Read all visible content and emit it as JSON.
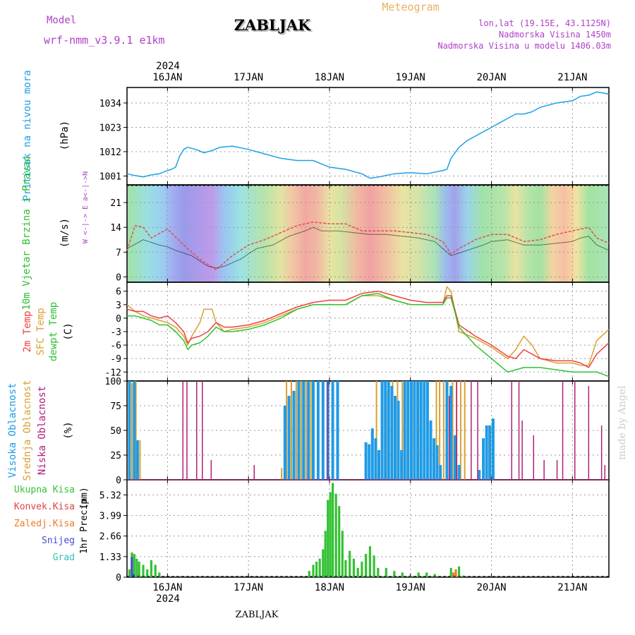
{
  "header": {
    "model_label": "Model",
    "model_name": "wrf-nmm_v3.9.1 e1km",
    "title": "ZABLJAK",
    "meteogram_label": "Meteogram",
    "coords": "lon,lat (19.15E, 43.1125N)",
    "elevation": "Nadmorska Visina 1450m",
    "model_elevation": "Nadmorska Visina u modelu 1406.03m",
    "footer": "ZABLJAK",
    "watermark": "made by Angel"
  },
  "colors": {
    "pressure": "#1ea0e6",
    "temp2m": "#f04040",
    "sfc": "#d9a030",
    "dewpt": "#30c030",
    "high_cloud": "#1e9be6",
    "mid_cloud": "#d9a030",
    "low_cloud": "#b0207a",
    "total_precip": "#34c234",
    "convective": "#e04040",
    "freezing": "#f07828",
    "snow": "#4848d8",
    "hail": "#30c0b0",
    "label_purple": "#b040c8",
    "label_gold": "#e8b060"
  },
  "chart_data": [
    {
      "type": "line",
      "panel": "pressure",
      "ylabel": "Pritisak na nivou mora",
      "unit": "(hPa)",
      "yticks": [
        1001,
        1012,
        1023,
        1034
      ],
      "ylim": [
        997,
        1041
      ],
      "xlim": [
        15.5,
        21.45
      ],
      "top_year": "2024",
      "day_labels": [
        "16JAN",
        "17JAN",
        "18JAN",
        "19JAN",
        "20JAN",
        "21JAN"
      ],
      "day_positions": [
        16,
        17,
        18,
        19,
        20,
        21
      ],
      "series": [
        {
          "x": [
            15.5,
            15.6,
            15.7,
            15.8,
            15.9,
            16.0,
            16.05,
            16.1,
            16.15,
            16.2,
            16.25,
            16.35,
            16.45,
            16.55,
            16.65,
            16.8,
            17.0,
            17.2,
            17.4,
            17.6,
            17.8,
            18.0,
            18.2,
            18.4,
            18.5,
            18.6,
            18.8,
            19.0,
            19.2,
            19.4,
            19.45,
            19.5,
            19.6,
            19.7,
            19.8,
            19.9,
            20.0,
            20.1,
            20.2,
            20.3,
            20.4,
            20.5,
            20.6,
            20.8,
            21.0,
            21.1,
            21.2,
            21.3,
            21.45
          ],
          "values": [
            1002,
            1001.2,
            1000.6,
            1001.5,
            1002,
            1003.5,
            1004,
            1005,
            1010,
            1013,
            1014,
            1013,
            1011.5,
            1012.5,
            1014,
            1014.5,
            1013,
            1011,
            1009,
            1008,
            1008,
            1005,
            1004,
            1002,
            1000,
            1000.5,
            1002,
            1002.5,
            1002,
            1003.5,
            1004,
            1009,
            1014,
            1017,
            1019,
            1021,
            1023,
            1025,
            1027,
            1029,
            1029,
            1030,
            1032,
            1034,
            1035,
            1037,
            1037.5,
            1039,
            1038
          ]
        }
      ]
    },
    {
      "type": "line",
      "panel": "wind",
      "ylabel": "10m Vjetar Brzina i Pravac",
      "unit": "(m/s)",
      "yticks": [
        0,
        7,
        14,
        21
      ],
      "ylim": [
        -1.5,
        26
      ],
      "direction_legend": "W <-|-> E  a<-|->N",
      "series": [
        {
          "name": "10m wind speed",
          "x": [
            15.5,
            15.7,
            15.9,
            16.0,
            16.1,
            16.3,
            16.5,
            16.6,
            16.7,
            16.9,
            17.1,
            17.3,
            17.5,
            17.7,
            17.8,
            17.9,
            18.1,
            18.3,
            18.5,
            18.7,
            18.9,
            19.1,
            19.3,
            19.5,
            19.7,
            19.9,
            20.0,
            20.2,
            20.4,
            20.6,
            20.8,
            21.0,
            21.1,
            21.2,
            21.3,
            21.45
          ],
          "values": [
            8,
            10.5,
            9,
            8.5,
            7.5,
            6,
            3,
            2.5,
            3,
            5,
            8,
            9,
            11.5,
            13,
            14,
            13,
            13,
            12.5,
            12,
            12,
            11.5,
            11,
            10,
            6,
            7.5,
            9,
            10,
            10.5,
            9,
            9,
            9.5,
            10,
            11,
            11.5,
            9,
            7.5
          ]
        },
        {
          "name": "10m wind gust",
          "x": [
            15.5,
            15.6,
            15.7,
            15.8,
            16.0,
            16.2,
            16.4,
            16.6,
            16.8,
            17.0,
            17.2,
            17.4,
            17.6,
            17.8,
            18.0,
            18.2,
            18.4,
            18.6,
            18.8,
            19.0,
            19.2,
            19.4,
            19.5,
            19.6,
            19.8,
            20.0,
            20.2,
            20.4,
            20.6,
            20.8,
            21.0,
            21.2,
            21.3,
            21.45
          ],
          "values": [
            7.5,
            14.5,
            14,
            11,
            13.5,
            9,
            5,
            2,
            6,
            9,
            10.5,
            12.5,
            14.5,
            15.5,
            15,
            15,
            13,
            13,
            13,
            12.5,
            12,
            10,
            6.5,
            8,
            10.5,
            12,
            12,
            10,
            10.5,
            12,
            13,
            14,
            11,
            9.5
          ]
        }
      ]
    },
    {
      "type": "line",
      "panel": "temperature",
      "ylabel": [
        "2m Temp",
        "SFC Temp",
        "dewpt Temp"
      ],
      "unit": "(C)",
      "yticks": [
        6,
        3,
        0,
        -3,
        -6,
        -9,
        -12
      ],
      "ylim": [
        -14,
        8
      ],
      "series": [
        {
          "name": "2m Temp",
          "x": [
            15.5,
            15.6,
            15.7,
            15.8,
            15.9,
            16.0,
            16.1,
            16.2,
            16.25,
            16.3,
            16.4,
            16.5,
            16.6,
            16.7,
            16.8,
            17.0,
            17.2,
            17.4,
            17.6,
            17.8,
            18.0,
            18.2,
            18.4,
            18.6,
            18.8,
            19.0,
            19.2,
            19.4,
            19.45,
            19.5,
            19.6,
            19.8,
            20.0,
            20.2,
            20.3,
            20.4,
            20.5,
            20.6,
            20.8,
            21.0,
            21.1,
            21.2,
            21.3,
            21.45
          ],
          "values": [
            2,
            1.5,
            1.5,
            0.5,
            0,
            0.5,
            -1,
            -3,
            -5.5,
            -4.5,
            -4,
            -3,
            -1,
            -2,
            -2,
            -1.5,
            -0.5,
            1,
            2.5,
            3.5,
            4,
            4,
            5.5,
            6,
            5,
            4,
            3.5,
            3.5,
            5,
            5,
            -1.5,
            -4,
            -6,
            -8.5,
            -9,
            -7,
            -8,
            -9,
            -9.5,
            -9.5,
            -10,
            -11,
            -8,
            -5.5
          ]
        },
        {
          "name": "SFC Temp",
          "x": [
            15.5,
            15.6,
            15.7,
            15.8,
            15.9,
            16.0,
            16.1,
            16.2,
            16.25,
            16.3,
            16.4,
            16.45,
            16.55,
            16.6,
            16.7,
            16.8,
            17.0,
            17.2,
            17.4,
            17.6,
            17.8,
            18.0,
            18.2,
            18.4,
            18.6,
            18.8,
            19.0,
            19.2,
            19.4,
            19.45,
            19.5,
            19.6,
            19.8,
            20.0,
            20.2,
            20.3,
            20.4,
            20.5,
            20.6,
            20.8,
            21.0,
            21.1,
            21.2,
            21.3,
            21.45
          ],
          "values": [
            3,
            1.5,
            0.5,
            0,
            -0.5,
            -1,
            -2,
            -4,
            -6,
            -4,
            -1,
            2,
            2,
            -1,
            -3,
            -2.5,
            -2,
            -1,
            0.5,
            2,
            3,
            3,
            3,
            5,
            5,
            4,
            3,
            3,
            3,
            7,
            6,
            -3,
            -4.5,
            -6.5,
            -9,
            -7,
            -4,
            -6,
            -9,
            -10,
            -10,
            -10.5,
            -10.5,
            -5,
            -2.5
          ]
        },
        {
          "name": "dewpt Temp",
          "x": [
            15.5,
            15.6,
            15.7,
            15.8,
            15.9,
            16.0,
            16.1,
            16.2,
            16.25,
            16.3,
            16.4,
            16.5,
            16.6,
            16.7,
            16.8,
            17.0,
            17.2,
            17.4,
            17.6,
            17.8,
            18.0,
            18.2,
            18.4,
            18.6,
            18.8,
            19.0,
            19.2,
            19.4,
            19.45,
            19.5,
            19.6,
            19.8,
            20.0,
            20.2,
            20.3,
            20.4,
            20.6,
            20.8,
            21.0,
            21.2,
            21.3,
            21.45
          ],
          "values": [
            0.5,
            0.5,
            0,
            -0.5,
            -1.5,
            -1.5,
            -3,
            -5,
            -7,
            -6,
            -5.5,
            -4,
            -2,
            -3,
            -3,
            -2.5,
            -1.5,
            0,
            2,
            3,
            3,
            3,
            5,
            5.5,
            4,
            3,
            3,
            3,
            4.5,
            4.5,
            -2,
            -6,
            -9,
            -12,
            -11.5,
            -11,
            -11,
            -11.5,
            -12,
            -12,
            -12,
            -13
          ]
        }
      ]
    },
    {
      "type": "bar",
      "panel": "clouds",
      "ylabel": [
        "Visoka Oblacnost",
        "Srednja Oblacnost",
        "Niska Oblacnost"
      ],
      "unit": "(%)",
      "yticks": [
        0,
        25,
        50,
        75,
        100
      ],
      "ylim": [
        0,
        100
      ],
      "series": [
        {
          "name": "Visoka Oblacnost",
          "x": [
            15.53,
            15.59,
            15.63,
            17.45,
            17.5,
            17.56,
            17.62,
            17.68,
            17.74,
            17.8,
            17.86,
            17.92,
            17.98,
            18.04,
            18.1,
            18.45,
            18.49,
            18.53,
            18.57,
            18.61,
            18.65,
            18.69,
            18.73,
            18.77,
            18.81,
            18.85,
            18.89,
            18.93,
            18.97,
            19.01,
            19.05,
            19.09,
            19.13,
            19.17,
            19.21,
            19.25,
            19.29,
            19.33,
            19.37,
            19.45,
            19.5,
            19.55,
            19.6,
            19.85,
            19.9,
            19.94,
            19.98,
            20.02
          ],
          "values": [
            100,
            100,
            40,
            75,
            85,
            90,
            100,
            100,
            100,
            100,
            100,
            100,
            100,
            100,
            100,
            38,
            36,
            52,
            42,
            30,
            100,
            100,
            100,
            95,
            85,
            80,
            30,
            100,
            100,
            100,
            100,
            100,
            100,
            100,
            100,
            60,
            42,
            35,
            15,
            100,
            95,
            45,
            15,
            10,
            42,
            55,
            55,
            62
          ]
        },
        {
          "name": "Srednja Oblacnost",
          "x": [
            15.56,
            15.61,
            15.66,
            17.41,
            17.47,
            17.53,
            17.59,
            17.65,
            17.71,
            17.77,
            18.58,
            18.72,
            18.78,
            18.84,
            18.9,
            18.96,
            19.02,
            19.12,
            19.32,
            19.36,
            19.41,
            19.46,
            19.52,
            19.57,
            19.62,
            19.67,
            19.97
          ],
          "values": [
            98,
            100,
            40,
            12,
            100,
            100,
            100,
            100,
            100,
            100,
            100,
            90,
            100,
            100,
            100,
            100,
            100,
            100,
            100,
            100,
            100,
            100,
            100,
            100,
            100,
            100,
            55
          ]
        },
        {
          "name": "Niska Oblacnost",
          "x": [
            16.19,
            16.24,
            16.36,
            16.43,
            16.54,
            17.07,
            17.98,
            19.48,
            19.57,
            19.75,
            19.83,
            20.25,
            20.34,
            20.38,
            20.52,
            20.65,
            20.81,
            20.88,
            21.03,
            21.2,
            21.36,
            21.4
          ],
          "values": [
            100,
            100,
            100,
            100,
            20,
            15,
            100,
            85,
            100,
            100,
            100,
            100,
            100,
            60,
            45,
            20,
            20,
            100,
            100,
            95,
            55,
            15
          ]
        }
      ]
    },
    {
      "type": "bar",
      "panel": "precipitation",
      "ylabel": "1hr Precip",
      "unit": "(mm)",
      "yticks": [
        0,
        1.33,
        2.66,
        3.99,
        5.32
      ],
      "ylim": [
        0,
        6.3
      ],
      "legend": [
        "Ukupna Kisa",
        "Konvek.Kisa",
        "Zaledj.Kisa",
        "Snijeg",
        "Grad"
      ],
      "bottom_year": "2024",
      "series": [
        {
          "name": "Ukupna Kisa",
          "x": [
            15.53,
            15.56,
            15.59,
            15.62,
            15.65,
            15.7,
            15.75,
            15.8,
            15.85,
            15.9,
            17.75,
            17.8,
            17.84,
            17.88,
            17.92,
            17.95,
            17.98,
            18.01,
            18.04,
            18.08,
            18.12,
            18.16,
            18.2,
            18.25,
            18.3,
            18.35,
            18.4,
            18.45,
            18.5,
            18.55,
            18.6,
            18.7,
            18.8,
            18.9,
            19.0,
            19.1,
            19.2,
            19.3,
            19.5,
            19.6,
            19.65
          ],
          "values": [
            0.5,
            1.6,
            1.5,
            1.2,
            1.0,
            0.8,
            0.5,
            1.1,
            0.8,
            0.3,
            0.4,
            0.8,
            1.0,
            1.2,
            1.8,
            3.0,
            5.0,
            5.5,
            6.1,
            5.4,
            4.6,
            3.0,
            1.1,
            1.7,
            1.2,
            0.6,
            1.0,
            1.5,
            2.0,
            1.4,
            0.6,
            0.6,
            0.4,
            0.3,
            0.1,
            0.3,
            0.3,
            0.2,
            0.6,
            0.7,
            0.1
          ]
        },
        {
          "name": "Konvek.Kisa",
          "x": [],
          "values": []
        },
        {
          "name": "Zaledj.Kisa",
          "x": [
            19.53,
            19.56
          ],
          "values": [
            0.3,
            0.5
          ]
        },
        {
          "name": "Snijeg",
          "x": [
            15.56,
            15.58
          ],
          "values": [
            1.3,
            0.2
          ]
        },
        {
          "name": "Grad",
          "x": [],
          "values": []
        }
      ]
    }
  ]
}
